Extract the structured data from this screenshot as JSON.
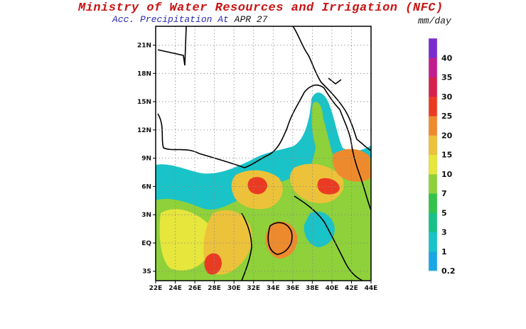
{
  "header": {
    "title": "Ministry of Water Resources and Irrigation (NFC)",
    "subtitle_prefix": "Acc. Precipitation  At",
    "subtitle_date": "APR 27",
    "units": "mm/day"
  },
  "map": {
    "x_ticks": [
      "22E",
      "24E",
      "26E",
      "28E",
      "30E",
      "32E",
      "34E",
      "36E",
      "38E",
      "40E",
      "42E",
      "44E"
    ],
    "y_ticks": [
      "21N",
      "18N",
      "15N",
      "12N",
      "9N",
      "6N",
      "3N",
      "EQ",
      "3S"
    ],
    "lon_range": [
      22,
      44
    ],
    "lat_range": [
      -4,
      23
    ],
    "gridlines": true
  },
  "colorbar": {
    "labels": [
      "0.2",
      "1",
      "3",
      "5",
      "7",
      "10",
      "15",
      "20",
      "25",
      "30",
      "35",
      "40"
    ],
    "colors": [
      "#1aa7e6",
      "#19c3c8",
      "#18c08a",
      "#33c24a",
      "#8ed13a",
      "#e6e63c",
      "#ecc23a",
      "#ee8a2e",
      "#ea3b22",
      "#d6204e",
      "#c21c8e",
      "#7a2bd0"
    ]
  }
}
